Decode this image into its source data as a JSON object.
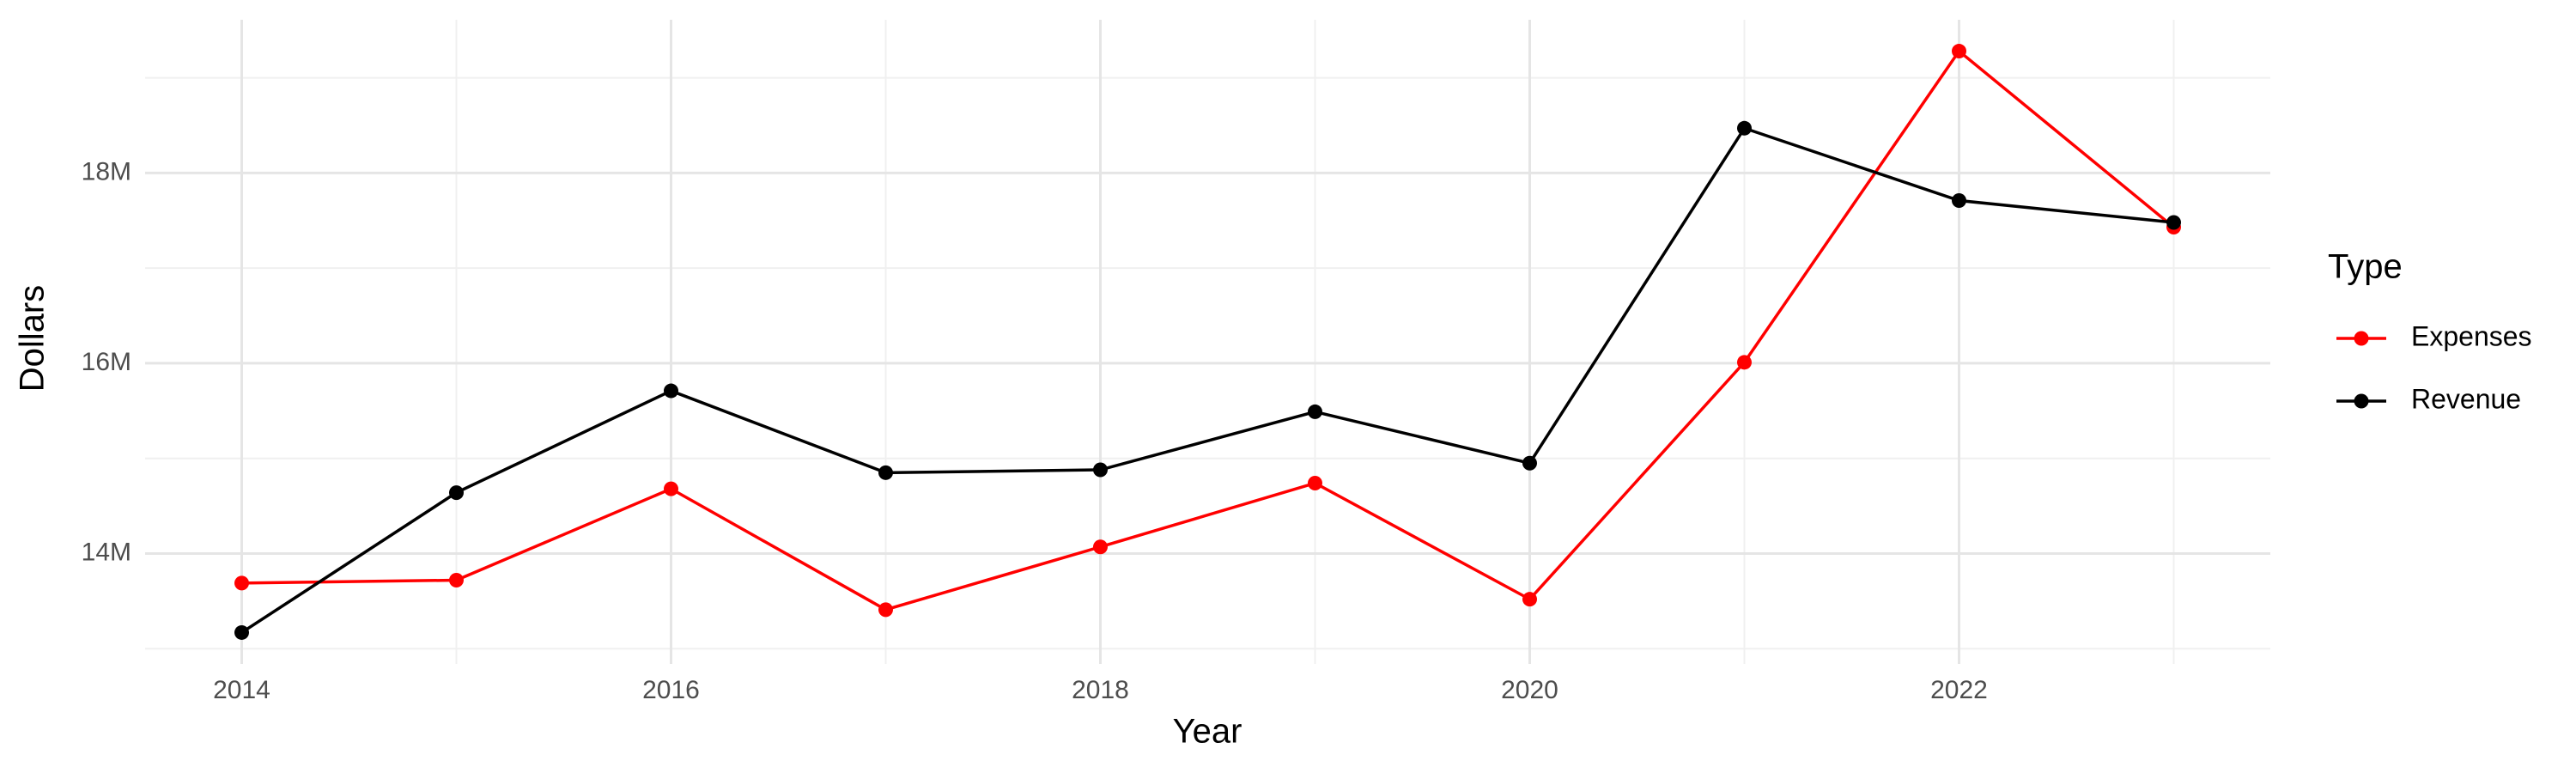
{
  "chart_data": {
    "type": "line",
    "x_label": "Year",
    "y_label": "Dollars",
    "legend_title": "Type",
    "x": [
      2014,
      2015,
      2016,
      2017,
      2018,
      2019,
      2020,
      2021,
      2022,
      2023
    ],
    "series": [
      {
        "name": "Expenses",
        "color": "#ff0000",
        "values": [
          13690000,
          13720000,
          14680000,
          13410000,
          14070000,
          14740000,
          13520000,
          16010000,
          19280000,
          17430000
        ]
      },
      {
        "name": "Revenue",
        "color": "#000000",
        "values": [
          13170000,
          14640000,
          15710000,
          14850000,
          14880000,
          15490000,
          14950000,
          18470000,
          17710000,
          17480000
        ]
      }
    ],
    "xlim": [
      2013.55,
      2023.45
    ],
    "xticks": [
      2014,
      2016,
      2018,
      2020,
      2022
    ],
    "x_minor_ticks": [
      2015,
      2017,
      2019,
      2021,
      2023
    ],
    "ylim": [
      12840000,
      19610000
    ],
    "yticks": [
      {
        "value": 14000000,
        "label": "14M"
      },
      {
        "value": 16000000,
        "label": "16M"
      },
      {
        "value": 18000000,
        "label": "18M"
      }
    ],
    "y_minor_ticks": [
      13000000,
      15000000,
      17000000,
      19000000
    ],
    "grid": true,
    "legend": "right"
  }
}
